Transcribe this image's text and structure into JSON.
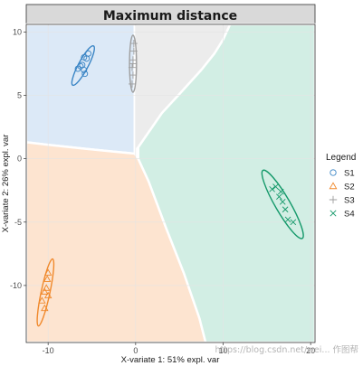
{
  "chart_data": {
    "type": "scatter",
    "title": "Maximum distance",
    "xlabel": "X-variate 1: 51% expl. var",
    "ylabel": "X-variate 2: 26% expl. var",
    "xlim": [
      -12.5,
      20.5
    ],
    "ylim": [
      -14.5,
      10.6
    ],
    "x_ticks": [
      -10,
      0,
      10,
      20
    ],
    "y_ticks": [
      10,
      5,
      0,
      -5,
      -10
    ],
    "grid": true,
    "legend": {
      "title": "Legend",
      "position": "right"
    },
    "background_regions": [
      {
        "series": "S1",
        "color": "#dce9f7"
      },
      {
        "series": "S2",
        "color": "#fde4d0"
      },
      {
        "series": "S3",
        "color": "#ececec"
      },
      {
        "series": "S4",
        "color": "#d2eee4"
      }
    ],
    "series": [
      {
        "name": "S1",
        "marker": "circle",
        "color": "#3a85c5",
        "points": [
          [
            -5.9,
            7.0
          ],
          [
            -6.1,
            7.4
          ],
          [
            -6.3,
            7.3
          ],
          [
            -5.6,
            7.9
          ],
          [
            -5.9,
            8.0
          ],
          [
            -5.8,
            6.7
          ],
          [
            -6.6,
            7.1
          ],
          [
            -5.4,
            8.3
          ]
        ],
        "ellipse": {
          "cx": -6.0,
          "cy": 7.35,
          "rx": 0.55,
          "ry": 1.75,
          "angle": 28
        }
      },
      {
        "name": "S2",
        "marker": "triangle",
        "color": "#f0882a",
        "points": [
          [
            -10.1,
            -9.5
          ],
          [
            -10.4,
            -10.5
          ],
          [
            -10.2,
            -10.2
          ],
          [
            -10.0,
            -10.8
          ],
          [
            -10.7,
            -11.2
          ],
          [
            -10.4,
            -11.8
          ],
          [
            -10.0,
            -9.0
          ]
        ],
        "ellipse": {
          "cx": -10.3,
          "cy": -10.55,
          "rx": 0.5,
          "ry": 2.7,
          "angle": 12
        }
      },
      {
        "name": "S3",
        "marker": "plus",
        "color": "#9e9e9e",
        "points": [
          [
            -0.3,
            7.8
          ],
          [
            -0.4,
            7.2
          ],
          [
            -0.3,
            6.6
          ],
          [
            -0.2,
            8.5
          ],
          [
            -0.4,
            5.9
          ],
          [
            -0.2,
            9.1
          ],
          [
            -0.3,
            7.5
          ]
        ],
        "ellipse": {
          "cx": -0.3,
          "cy": 7.5,
          "rx": 0.4,
          "ry": 2.25,
          "angle": 0
        }
      },
      {
        "name": "S4",
        "marker": "x",
        "color": "#14996a",
        "points": [
          [
            16.0,
            -2.2
          ],
          [
            16.4,
            -3.0
          ],
          [
            16.8,
            -3.4
          ],
          [
            17.1,
            -4.0
          ],
          [
            17.4,
            -4.8
          ],
          [
            18.0,
            -5.0
          ],
          [
            15.6,
            -2.4
          ],
          [
            16.6,
            -2.6
          ]
        ],
        "ellipse": {
          "cx": 16.8,
          "cy": -3.6,
          "rx": 0.85,
          "ry": 3.1,
          "angle": -30
        }
      }
    ]
  },
  "watermark": "https://blog.csdn.net/wei... 作图帮"
}
